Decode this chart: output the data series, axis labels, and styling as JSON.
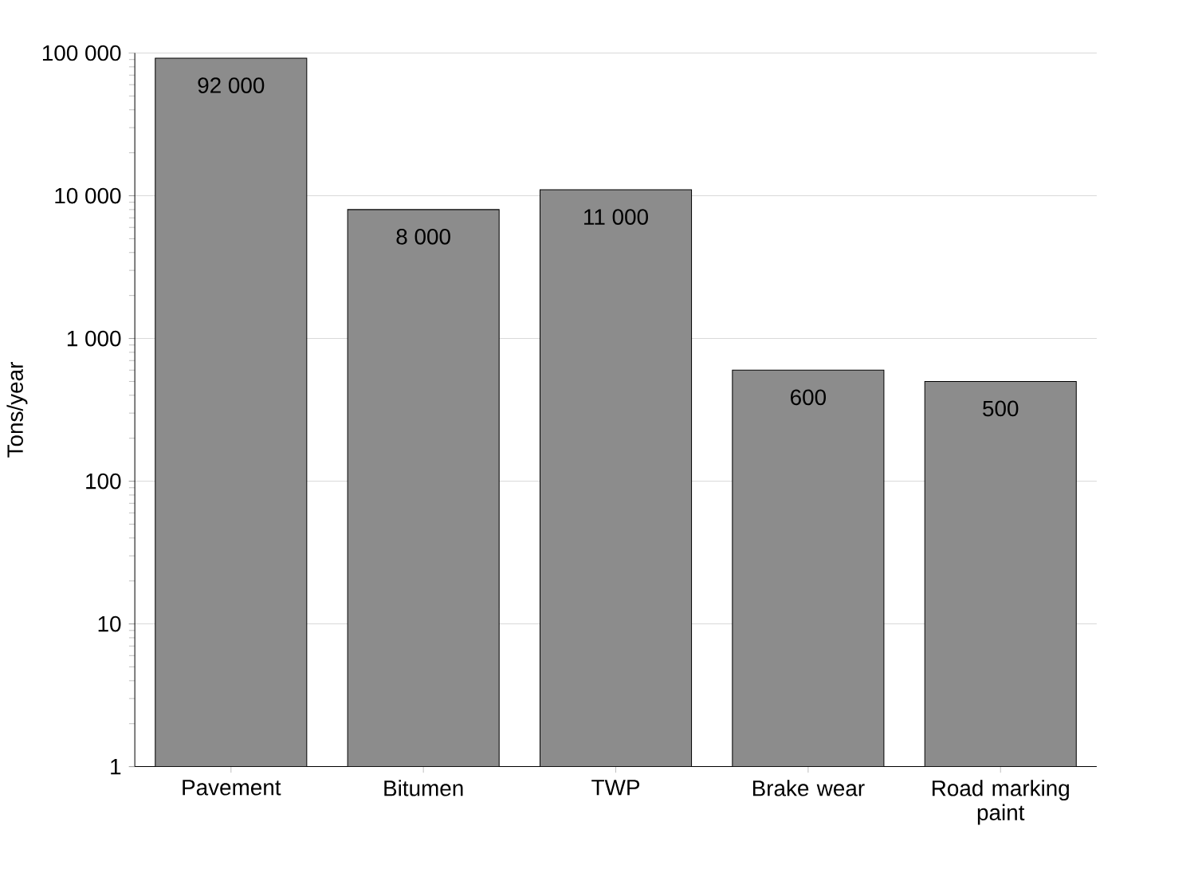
{
  "chart_data": {
    "type": "bar",
    "ylabel": "Tons/year",
    "categories": [
      "Pavement",
      "Bitumen",
      "TWP",
      "Brake wear",
      "Road marking paint"
    ],
    "values": [
      92000,
      8000,
      11000,
      600,
      500
    ],
    "value_labels": [
      "92 000",
      "8 000",
      "11 000",
      "600",
      "500"
    ],
    "color": "#8c8c8c",
    "log": "y",
    "grid": "y",
    "ylim": [
      1,
      100000
    ],
    "yticks": [
      {
        "value": 1,
        "label": "1"
      },
      {
        "value": 10,
        "label": "10"
      },
      {
        "value": 100,
        "label": "100"
      },
      {
        "value": 1000,
        "label": "1 000"
      },
      {
        "value": 10000,
        "label": "10 000"
      },
      {
        "value": 100000,
        "label": "100 000"
      }
    ]
  }
}
